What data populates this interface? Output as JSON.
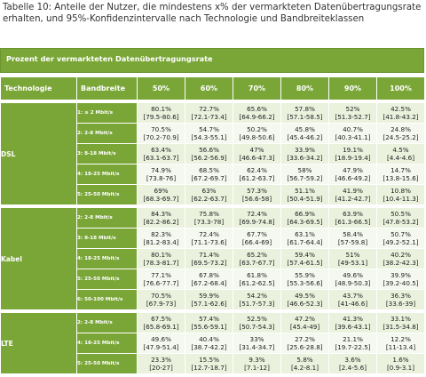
{
  "caption": "Tabelle 10: Anteile der Nutzer, die mindestens x% der vermarkteten Datenübertragungsrate erhalten, und 95%-Konfidenzintervalle nach Technologie und Bandbreiteklassen",
  "table_title": "Prozent der vermarkteten Datenübertragungsrate",
  "headers": {
    "technology": "Technologie",
    "bandwidth": "Bandbreite",
    "cols": [
      "50%",
      "60%",
      "70%",
      "80%",
      "90%",
      "100%"
    ]
  },
  "groups": [
    {
      "name": "DSL",
      "rows": [
        {
          "bw": "1: ≤ 2 Mbit/s",
          "cells": [
            [
              "80.1%",
              "[79.5-80.6]"
            ],
            [
              "72.7%",
              "[72.1-73.4]"
            ],
            [
              "65.6%",
              "[64.9-66.2]"
            ],
            [
              "57.8%",
              "[57.1-58.5]"
            ],
            [
              "52%",
              "[51.3-52.7]"
            ],
            [
              "42.5%",
              "[41.8-43.2]"
            ]
          ]
        },
        {
          "bw": "2: 2-8 Mbit/s",
          "cells": [
            [
              "70.5%",
              "[70.2-70.9]"
            ],
            [
              "54.7%",
              "[54.3-55.1]"
            ],
            [
              "50.2%",
              "[49.8-50.6]"
            ],
            [
              "45.8%",
              "[45.4-46.2]"
            ],
            [
              "40.7%",
              "[40.3-41.1]"
            ],
            [
              "24.8%",
              "[24.5-25.2]"
            ]
          ]
        },
        {
          "bw": "3: 8-18 Mbit/s",
          "cells": [
            [
              "63.4%",
              "[63.1-63.7]"
            ],
            [
              "56.6%",
              "[56.2-56.9]"
            ],
            [
              "47%",
              "[46.6-47.3]"
            ],
            [
              "33.9%",
              "[33.6-34.2]"
            ],
            [
              "19.1%",
              "[18.9-19.4]"
            ],
            [
              "4.5%",
              "[4.4-4.6]"
            ]
          ]
        },
        {
          "bw": "4: 18-25 Mbit/s",
          "cells": [
            [
              "74.9%",
              "[73.8-76]"
            ],
            [
              "68.5%",
              "[67.2-69.7]"
            ],
            [
              "62.4%",
              "[61.2-63.7]"
            ],
            [
              "58%",
              "[56.7-59.2]"
            ],
            [
              "47.9%",
              "[46.6-49.2]"
            ],
            [
              "14.7%",
              "[13.8-15.6]"
            ]
          ]
        },
        {
          "bw": "5: 25-50 Mbit/s",
          "cells": [
            [
              "69%",
              "[68.3-69.7]"
            ],
            [
              "63%",
              "[62.2-63.7]"
            ],
            [
              "57.3%",
              "[56.6-58]"
            ],
            [
              "51.1%",
              "[50.4-51.9]"
            ],
            [
              "41.9%",
              "[41.2-42.7]"
            ],
            [
              "10.8%",
              "[10.4-11.3]"
            ]
          ]
        }
      ]
    },
    {
      "name": "Kabel",
      "rows": [
        {
          "bw": "2: 2-8 Mbit/s",
          "cells": [
            [
              "84.3%",
              "[82.2-86.2]"
            ],
            [
              "75.8%",
              "[73.3-78]"
            ],
            [
              "72.4%",
              "[69.9-74.8]"
            ],
            [
              "66.9%",
              "[64.3-69.5]"
            ],
            [
              "63.9%",
              "[61.3-66.5]"
            ],
            [
              "50.5%",
              "[47.8-53.2]"
            ]
          ]
        },
        {
          "bw": "3: 8-18 Mbit/s",
          "cells": [
            [
              "82.3%",
              "[81.2-83.4]"
            ],
            [
              "72.4%",
              "[71.1-73.6]"
            ],
            [
              "67.7%",
              "[66.4-69]"
            ],
            [
              "63.1%",
              "[61.7-64.4]"
            ],
            [
              "58.4%",
              "[57-59.8]"
            ],
            [
              "50.7%",
              "[49.2-52.1]"
            ]
          ]
        },
        {
          "bw": "4: 18-25 Mbit/s",
          "cells": [
            [
              "80.1%",
              "[78.3-81.7]"
            ],
            [
              "71.4%",
              "[69.5-73.2]"
            ],
            [
              "65.2%",
              "[63.7-67.7]"
            ],
            [
              "59.4%",
              "[57.4-61.5]"
            ],
            [
              "51%",
              "[49-53.1]"
            ],
            [
              "40.2%",
              "[38.2-42.3]"
            ]
          ]
        },
        {
          "bw": "5: 25-50 Mbit/s",
          "cells": [
            [
              "77.1%",
              "[76.6-77.7]"
            ],
            [
              "67.8%",
              "[67.2-68.4]"
            ],
            [
              "61.8%",
              "[61.2-62.5]"
            ],
            [
              "55.9%",
              "[55.3-56.6]"
            ],
            [
              "49.6%",
              "[48.9-50.3]"
            ],
            [
              "39.9%",
              "[39.2-40.5]"
            ]
          ]
        },
        {
          "bw": "6: 50-100 Mbit/s",
          "cells": [
            [
              "70.5%",
              "[67.9-73]"
            ],
            [
              "59.9%",
              "[57.1-62.6]"
            ],
            [
              "54.2%",
              "[51.7-57.3]"
            ],
            [
              "49.5%",
              "[46.6-52.3]"
            ],
            [
              "43.7%",
              "[41-46.6]"
            ],
            [
              "36.3%",
              "[33.6-39]"
            ]
          ]
        }
      ]
    },
    {
      "name": "LTE",
      "rows": [
        {
          "bw": "2: 2-8 Mbit/s",
          "cells": [
            [
              "67.5%",
              "[65.8-69.1]"
            ],
            [
              "57.4%",
              "[55.6-59.1]"
            ],
            [
              "52.5%",
              "[50.7-54.3]"
            ],
            [
              "47.2%",
              "[45.4-49]"
            ],
            [
              "41.3%",
              "[39.6-43.1]"
            ],
            [
              "33.1%",
              "[31.5-34.8]"
            ]
          ]
        },
        {
          "bw": "4: 18-25 Mbit/s",
          "cells": [
            [
              "49.6%",
              "[47.9-51.4]"
            ],
            [
              "40.4%",
              "[38.7-42.2]"
            ],
            [
              "33%",
              "[31.4-34.7]"
            ],
            [
              "27.2%",
              "[25.6-28.8]"
            ],
            [
              "21.1%",
              "[19.7-22.5]"
            ],
            [
              "12.2%",
              "[11-13.4]"
            ]
          ]
        },
        {
          "bw": "5: 25-50 Mbit/s",
          "cells": [
            [
              "23.3%",
              "[20-27]"
            ],
            [
              "15.5%",
              "[12.7-18.7]"
            ],
            [
              "9.3%",
              "[7.1-12]"
            ],
            [
              "5.8%",
              "[4.2-8.1]"
            ],
            [
              "3.6%",
              "[2.4-5.6]"
            ],
            [
              "1.6%",
              "[0.9-3.1]"
            ]
          ]
        }
      ]
    }
  ],
  "colors": {
    "header_green": "#7aa638",
    "cell_bg": "#eaf1dd"
  }
}
